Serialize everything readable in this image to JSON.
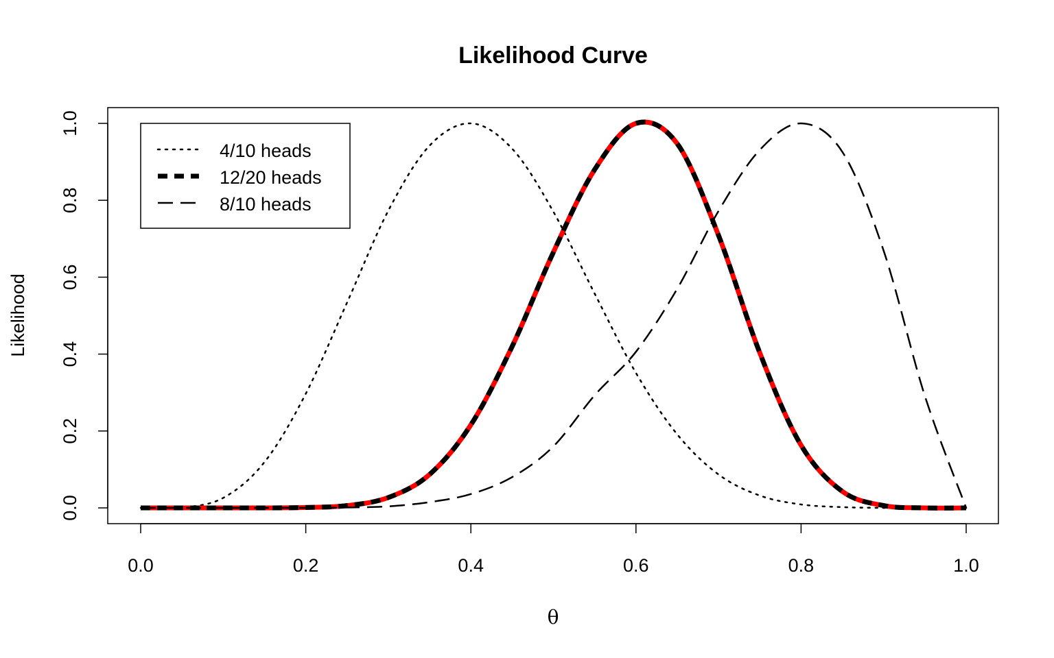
{
  "chart_data": {
    "type": "line",
    "title": "Likelihood Curve",
    "xlabel": "θ",
    "ylabel": "Likelihood",
    "xlim": [
      0.0,
      1.0
    ],
    "ylim": [
      0.0,
      1.0
    ],
    "x_ticks": [
      "0.0",
      "0.2",
      "0.4",
      "0.6",
      "0.8",
      "1.0"
    ],
    "y_ticks": [
      "0.0",
      "0.2",
      "0.4",
      "0.6",
      "0.8",
      "1.0"
    ],
    "grid": false,
    "legend_position": "top-left",
    "x": [
      0.0,
      0.05,
      0.1,
      0.15,
      0.2,
      0.25,
      0.3,
      0.35,
      0.4,
      0.45,
      0.5,
      0.55,
      0.6,
      0.65,
      0.7,
      0.75,
      0.8,
      0.85,
      0.9,
      0.95,
      1.0
    ],
    "series": [
      {
        "name": "4/10 heads",
        "style": "dotted",
        "color": "#000000",
        "values": [
          0.0,
          0.001,
          0.026,
          0.119,
          0.297,
          0.534,
          0.773,
          0.942,
          1.0,
          0.934,
          0.77,
          0.557,
          0.351,
          0.191,
          0.087,
          0.032,
          0.009,
          0.002,
          0.0,
          0.0,
          0.0
        ]
      },
      {
        "name": "12/20 heads",
        "style": "thick-dashed",
        "color": "#000000",
        "highlight_color": "#ff0000",
        "values": [
          0.0,
          0.0,
          0.0,
          0.0,
          0.001,
          0.006,
          0.027,
          0.087,
          0.216,
          0.42,
          0.665,
          0.88,
          1.0,
          0.947,
          0.709,
          0.403,
          0.163,
          0.043,
          0.006,
          0.0,
          0.0
        ]
      },
      {
        "name": "8/10 heads",
        "style": "dashed",
        "color": "#000000",
        "values": [
          0.0,
          0.0,
          0.0,
          0.0,
          0.0,
          0.001,
          0.004,
          0.015,
          0.036,
          0.08,
          0.16,
          0.293,
          0.406,
          0.57,
          0.772,
          0.931,
          1.0,
          0.926,
          0.669,
          0.291,
          0.0
        ]
      }
    ]
  }
}
